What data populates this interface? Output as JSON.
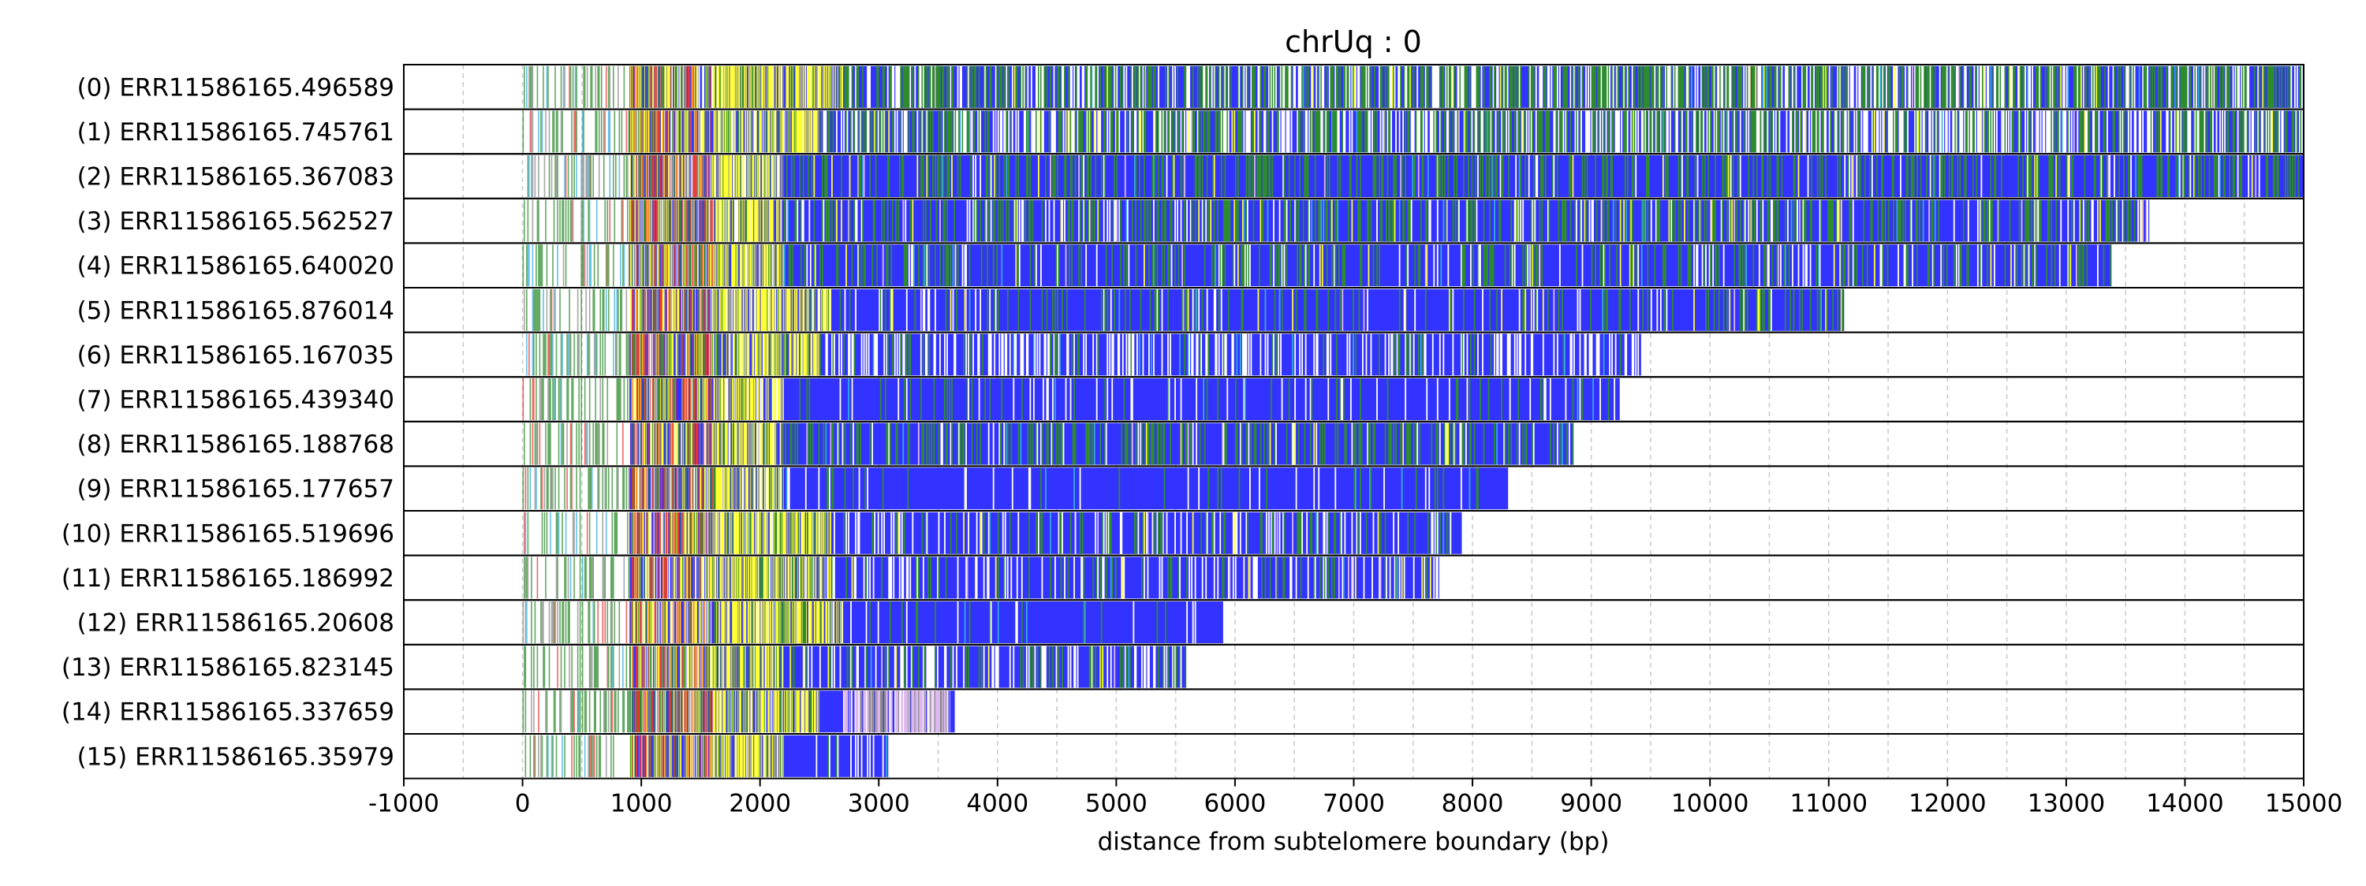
{
  "chart_data": {
    "type": "heatmap",
    "title": "chrUq : 0",
    "xlabel": "distance from subtelomere boundary (bp)",
    "xlim": [
      -1000,
      15000
    ],
    "xticks": [
      -1000,
      0,
      1000,
      2000,
      3000,
      4000,
      5000,
      6000,
      7000,
      8000,
      9000,
      10000,
      11000,
      12000,
      13000,
      14000,
      15000
    ],
    "xtick_labels": [
      "-1000",
      "0",
      "1000",
      "2000",
      "3000",
      "4000",
      "5000",
      "6000",
      "7000",
      "8000",
      "9000",
      "10000",
      "11000",
      "12000",
      "13000",
      "14000",
      "15000"
    ],
    "vertical_grid": "dashed, every 500 bp",
    "colors": {
      "blue": "#3333ff",
      "green": "#2e8b2e",
      "yellow": "#ffff33",
      "red": "#ee3333",
      "white": "#ffffff",
      "lavender": "#ddb8f0",
      "cyan": "#33aadd",
      "gray": "#8a8a8a"
    },
    "rows": [
      {
        "label": "(0) ERR11586165.496589",
        "end": 15000,
        "yellow_end": 2700,
        "blue_start": 2700,
        "pattern": "mixed",
        "green_frac": 0.35,
        "white_frac": 0.25
      },
      {
        "label": "(1) ERR11586165.745761",
        "end": 15000,
        "yellow_end": 2500,
        "blue_start": 2500,
        "pattern": "mixed",
        "green_frac": 0.3,
        "white_frac": 0.3
      },
      {
        "label": "(2) ERR11586165.367083",
        "end": 15000,
        "yellow_end": 2200,
        "blue_start": 2200,
        "pattern": "mixed",
        "green_frac": 0.25,
        "white_frac": 0.05
      },
      {
        "label": "(3) ERR11586165.562527",
        "end": 13700,
        "yellow_end": 2200,
        "blue_start": 2200,
        "pattern": "mixed",
        "green_frac": 0.25,
        "white_frac": 0.1
      },
      {
        "label": "(4) ERR11586165.640020",
        "end": 13380,
        "yellow_end": 2200,
        "blue_start": 2200,
        "pattern": "mixed",
        "green_frac": 0.2,
        "white_frac": 0.07
      },
      {
        "label": "(5) ERR11586165.876014",
        "end": 11130,
        "yellow_end": 2600,
        "blue_start": 2600,
        "pattern": "mixed",
        "green_frac": 0.12,
        "white_frac": 0.05
      },
      {
        "label": "(6) ERR11586165.167035",
        "end": 9420,
        "yellow_end": 2500,
        "blue_start": 2500,
        "pattern": "whiteheavy",
        "green_frac": 0.08,
        "white_frac": 0.3
      },
      {
        "label": "(7) ERR11586165.439340",
        "end": 9250,
        "yellow_end": 2200,
        "blue_start": 2200,
        "pattern": "bluesolid",
        "green_frac": 0.06,
        "white_frac": 0.06
      },
      {
        "label": "(8) ERR11586165.188768",
        "end": 8850,
        "yellow_end": 2200,
        "blue_start": 2200,
        "pattern": "mixed",
        "green_frac": 0.25,
        "white_frac": 0.05
      },
      {
        "label": "(9) ERR11586165.177657",
        "end": 8300,
        "yellow_end": 2200,
        "blue_start": 2200,
        "pattern": "bluesolid",
        "green_frac": 0.04,
        "white_frac": 0.05
      },
      {
        "label": "(10) ERR11586165.519696",
        "end": 7920,
        "yellow_end": 2600,
        "blue_start": 2600,
        "pattern": "mixed",
        "green_frac": 0.12,
        "white_frac": 0.15
      },
      {
        "label": "(11) ERR11586165.186992",
        "end": 7720,
        "yellow_end": 2600,
        "blue_start": 2600,
        "pattern": "mixed",
        "green_frac": 0.1,
        "white_frac": 0.15
      },
      {
        "label": "(12) ERR11586165.20608",
        "end": 5900,
        "yellow_end": 2700,
        "blue_start": 2700,
        "pattern": "bluesolid",
        "green_frac": 0.03,
        "white_frac": 0.03
      },
      {
        "label": "(13) ERR11586165.823145",
        "end": 5600,
        "yellow_end": 2200,
        "blue_start": 2200,
        "pattern": "mixed",
        "green_frac": 0.15,
        "white_frac": 0.2
      },
      {
        "label": "(14) ERR11586165.337659",
        "end": 3640,
        "yellow_end": 2500,
        "blue_start": 3600,
        "lavender_start": 2700,
        "pattern": "lavender",
        "green_frac": 0.05,
        "white_frac": 0.05
      },
      {
        "label": "(15) ERR11586165.35979",
        "end": 3080,
        "yellow_end": 2200,
        "blue_start": 2200,
        "pattern": "bluesolid",
        "green_frac": 0.05,
        "white_frac": 0.1
      }
    ]
  }
}
